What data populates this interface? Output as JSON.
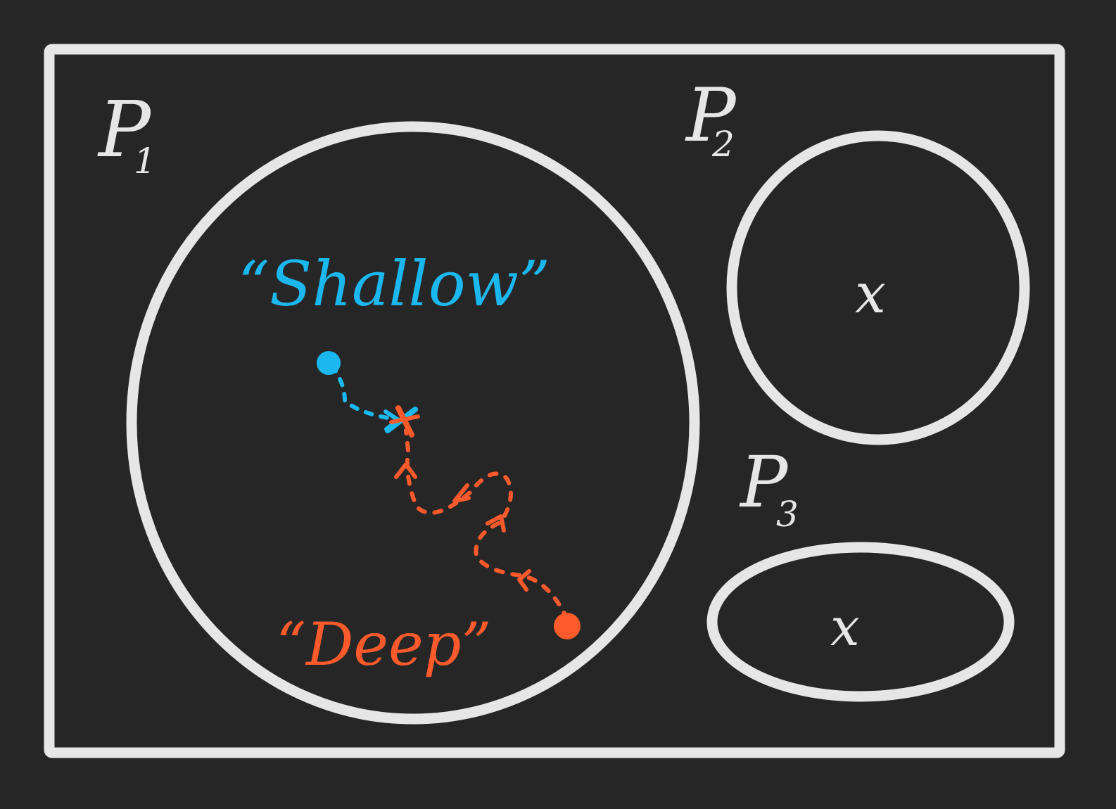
{
  "colors": {
    "background": "#262626",
    "stroke": "#e6e6e6",
    "shallow": "#1ab8ee",
    "deep": "#ff5a2c"
  },
  "regions": {
    "p1": {
      "letter": "P",
      "subscript": "1"
    },
    "p2": {
      "letter": "P",
      "subscript": "2"
    },
    "p3": {
      "letter": "P",
      "subscript": "3"
    }
  },
  "optima": {
    "p2_marker": "x",
    "p3_marker": "x"
  },
  "labels": {
    "shallow": "“Shallow”",
    "deep": "“Deep”"
  },
  "icons": {
    "shallow_start": "filled-circle-icon",
    "deep_start": "filled-circle-icon",
    "shared_minimum": "cross-icon"
  }
}
